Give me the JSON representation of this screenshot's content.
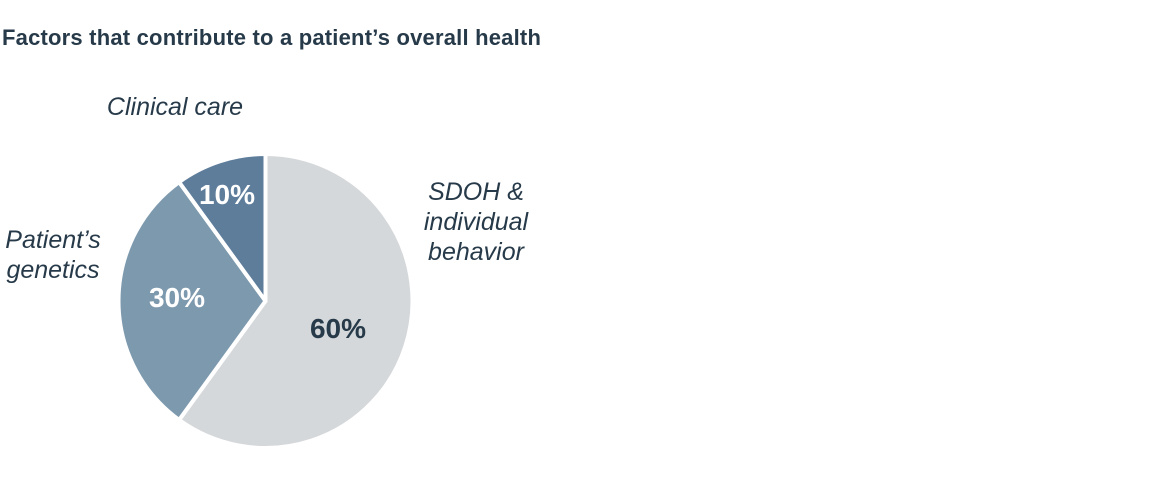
{
  "title": "Factors that contribute to a patient’s overall health",
  "chart_data": {
    "type": "pie",
    "title": "Factors that contribute to a patient’s overall health",
    "start_angle_deg": 0,
    "direction": "clockwise",
    "legend_position": "outside-labels",
    "slices": [
      {
        "label": "SDOH & individual behavior",
        "value": 60,
        "pct_label": "60%",
        "color": "#d5d8da",
        "pct_label_color": "#273a49"
      },
      {
        "label": "Patient’s genetics",
        "value": 30,
        "pct_label": "30%",
        "color": "#7d99ae",
        "pct_label_color": "#ffffff"
      },
      {
        "label": "Clinical care",
        "value": 10,
        "pct_label": "10%",
        "color": "#5e7d9b",
        "pct_label_color": "#ffffff"
      }
    ],
    "separator_color": "#ffffff"
  },
  "labels": {
    "clinical_care": "Clinical care",
    "patients_genetics": "Patient’s\ngenetics",
    "sdoh": "SDOH &\nindividual\nbehavior"
  },
  "colors": {
    "text_dark": "#273a49",
    "background": "#ffffff"
  }
}
